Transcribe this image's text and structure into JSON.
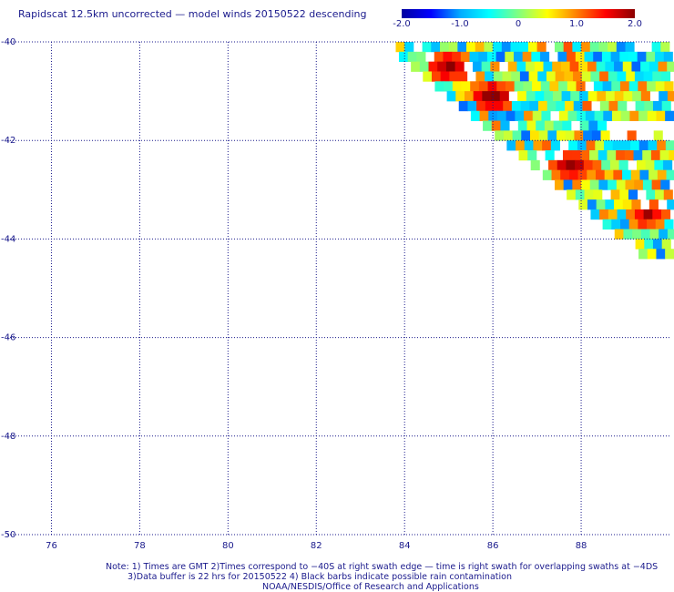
{
  "title": "Rapidscat 12.5km uncorrected — model winds 20150522 descending",
  "colorbar": {
    "ticks": [
      "-2.0",
      "-1.0",
      "0",
      "1.0",
      "2.0"
    ],
    "tick_values": [
      -2,
      -1,
      0,
      1,
      2
    ],
    "range": [
      -2,
      2
    ],
    "colors": [
      "#0000a0",
      "#0000ff",
      "#00aaff",
      "#00ffff",
      "#80ff80",
      "#ffff00",
      "#ff8000",
      "#ff0000",
      "#8b0000"
    ]
  },
  "notes": {
    "line1": "Note: 1) Times are GMT 2)Times correspond to −40S at right swath edge — time is right swath for overlapping swaths at −4DS",
    "line2": "3)Data buffer is 22 hrs for 20150522 4) Black barbs indicate possible rain contamination",
    "line3": "NOAA/NESDIS/Office of Research and Applications"
  },
  "chart_data": {
    "type": "heatmap",
    "title": "Rapidscat 12.5km uncorrected — model winds 20150522 descending",
    "x_ticks": [
      "76",
      "78",
      "80",
      "82",
      "84",
      "86",
      "88"
    ],
    "x_tick_values": [
      76,
      78,
      80,
      82,
      84,
      86,
      88
    ],
    "y_ticks": [
      "-40",
      "-42",
      "-44",
      "-46",
      "-48",
      "-50"
    ],
    "y_tick_values": [
      -40,
      -42,
      -44,
      -46,
      -48,
      -50
    ],
    "xlim": [
      75,
      90
    ],
    "ylim": [
      -50,
      -40
    ],
    "grid": true,
    "cell_size_deg": 0.2,
    "value_range": [
      -2,
      2
    ],
    "swath": {
      "edge_top_lon": 83.6,
      "edge_bottom_lon": 89.3,
      "edge_bottom_lat": -44.2,
      "east_limit_lon": 90
    },
    "hot_regions": [
      {
        "lon": 84.9,
        "lat": -40.4,
        "value": 2.0
      },
      {
        "lon": 85.9,
        "lat": -41.0,
        "value": 2.0
      },
      {
        "lon": 87.7,
        "lat": -42.4,
        "value": 2.0
      },
      {
        "lon": 89.4,
        "lat": -43.4,
        "value": 1.8
      }
    ]
  }
}
